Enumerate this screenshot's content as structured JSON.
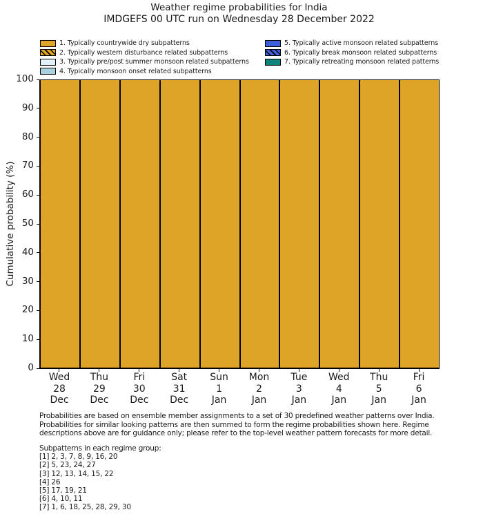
{
  "chart_data": {
    "type": "stacked_bar",
    "title": "Weather regime probabilities for India",
    "subtitle": "IMDGEFS 00 UTC run on Wednesday 28 December 2022",
    "ylabel": "Cumulative probability (%)",
    "ylim": [
      0,
      100
    ],
    "yticks": [
      0,
      10,
      20,
      30,
      40,
      50,
      60,
      70,
      80,
      90,
      100
    ],
    "grid": false,
    "legend_position": "top two-column (items 1-4 left, 5-7 right)",
    "bar_edge_color": "#000000",
    "categories": [
      {
        "day": "Wed",
        "date": "28",
        "month": "Dec"
      },
      {
        "day": "Thu",
        "date": "29",
        "month": "Dec"
      },
      {
        "day": "Fri",
        "date": "30",
        "month": "Dec"
      },
      {
        "day": "Sat",
        "date": "31",
        "month": "Dec"
      },
      {
        "day": "Sun",
        "date": "1",
        "month": "Jan"
      },
      {
        "day": "Mon",
        "date": "2",
        "month": "Jan"
      },
      {
        "day": "Tue",
        "date": "3",
        "month": "Jan"
      },
      {
        "day": "Wed",
        "date": "4",
        "month": "Jan"
      },
      {
        "day": "Thu",
        "date": "5",
        "month": "Jan"
      },
      {
        "day": "Fri",
        "date": "6",
        "month": "Jan"
      }
    ],
    "series": [
      {
        "name": "1. Typically countrywide dry subpatterns",
        "color": "#DDA427",
        "hatch": false,
        "values": [
          100,
          100,
          100,
          100,
          100,
          100,
          100,
          100,
          100,
          100
        ]
      },
      {
        "name": "2. Typically western disturbance related subpatterns",
        "color": "#DDA427",
        "hatch": true,
        "values": [
          0,
          0,
          0,
          0,
          0,
          0,
          0,
          0,
          0,
          0
        ]
      },
      {
        "name": "3. Typically pre/post summer monsoon related subpatterns",
        "color": "#E1F3F8",
        "hatch": false,
        "values": [
          0,
          0,
          0,
          0,
          0,
          0,
          0,
          0,
          0,
          0
        ]
      },
      {
        "name": "4. Typically monsoon onset related subpatterns",
        "color": "#A9D2E0",
        "hatch": false,
        "values": [
          0,
          0,
          0,
          0,
          0,
          0,
          0,
          0,
          0,
          0
        ]
      },
      {
        "name": "5. Typically active monsoon related subpatterns",
        "color": "#3F5FD8",
        "hatch": false,
        "values": [
          0,
          0,
          0,
          0,
          0,
          0,
          0,
          0,
          0,
          0
        ]
      },
      {
        "name": "6. Typically break monsoon related subpatterns",
        "color": "#3F5FD8",
        "hatch": true,
        "values": [
          0,
          0,
          0,
          0,
          0,
          0,
          0,
          0,
          0,
          0
        ]
      },
      {
        "name": "7. Typically retreating monsoon related patterns",
        "color": "#0F837B",
        "hatch": false,
        "values": [
          0,
          0,
          0,
          0,
          0,
          0,
          0,
          0,
          0,
          0
        ]
      }
    ]
  },
  "footnote": {
    "lines": [
      "Probabilities are based on ensemble member assignments to a set of 30 predefined weather patterns over India.",
      "Probabilities for similar looking patterns are then summed to form the regime probabilities shown here. Regime",
      "descriptions above are for guidance only; please refer to the top-level weather pattern forecasts for more detail."
    ]
  },
  "subpatterns": {
    "header": "Subpatterns in each regime group:",
    "lines": [
      "[1] 2, 3, 7, 8, 9, 16, 20",
      "[2] 5, 23, 24, 27",
      "[3] 12, 13, 14, 15, 22",
      "[4] 26",
      "[5] 17, 19, 21",
      "[6] 4, 10, 11",
      "[7] 1, 6, 18, 25, 28, 29, 30"
    ]
  }
}
